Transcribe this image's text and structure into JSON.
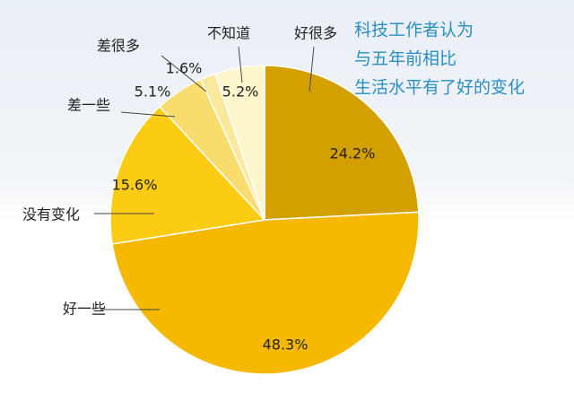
{
  "chart_data": {
    "type": "pie",
    "title": [
      "科技工作者认为",
      "与五年前相比",
      "生活水平有了好的变化"
    ],
    "categories": [
      "好很多",
      "好一些",
      "没有变化",
      "差一些",
      "差很多",
      "不知道"
    ],
    "values": [
      24.2,
      48.3,
      15.6,
      5.1,
      1.6,
      5.2
    ],
    "value_labels": [
      "24.2%",
      "48.3%",
      "15.6%",
      "5.1%",
      "1.6%",
      "5.2%"
    ],
    "colors": [
      "#d4a000",
      "#f6b900",
      "#fccb14",
      "#f8dc6e",
      "#fae99d",
      "#fdf6cc"
    ]
  }
}
